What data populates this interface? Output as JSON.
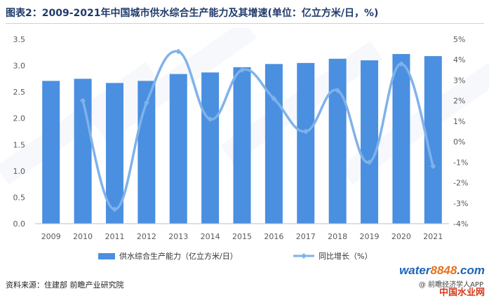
{
  "title": "图表2：2009-2021年中国城市供水综合生产能力及其增速(单位：亿立方米/日，%)",
  "source": "资料来源：住建部 前瞻产业研究院",
  "watermark": {
    "site_a": "water",
    "site_b": "8848",
    "site_c": ".com",
    "line2": "@ 前瞻经济学人APP",
    "line3": "中国水业网"
  },
  "colors": {
    "bar": "#4a8fe0",
    "line": "#7fb2ea",
    "title": "#1f3b6b"
  },
  "chart_data": {
    "type": "bar",
    "title": "图表2：2009-2021年中国城市供水综合生产能力及其增速(单位：亿立方米/日，%)",
    "categories": [
      "2009",
      "2010",
      "2011",
      "2012",
      "2013",
      "2014",
      "2015",
      "2016",
      "2017",
      "2018",
      "2019",
      "2020",
      "2021"
    ],
    "series": [
      {
        "name": "供水综合生产能力（亿立方米/日）",
        "type": "bar",
        "axis": "left",
        "values": [
          2.71,
          2.75,
          2.67,
          2.71,
          2.84,
          2.87,
          2.97,
          3.03,
          3.05,
          3.13,
          3.1,
          3.22,
          3.18
        ]
      },
      {
        "name": "同比增长（%）",
        "type": "line",
        "axis": "right",
        "smooth": true,
        "values": [
          null,
          2.0,
          -3.3,
          1.9,
          4.4,
          1.1,
          3.5,
          2.1,
          0.5,
          2.5,
          -1.0,
          3.8,
          -1.2
        ]
      }
    ],
    "y_left": {
      "min": 0,
      "max": 3.5,
      "ticks": [
        "0.0",
        "0.5",
        "1.0",
        "1.5",
        "2.0",
        "2.5",
        "3.0",
        "3.5"
      ]
    },
    "y_right": {
      "min": -4,
      "max": 5,
      "ticks": [
        "-4%",
        "-3%",
        "-2%",
        "-1%",
        "0%",
        "1%",
        "2%",
        "3%",
        "4%",
        "5%"
      ]
    },
    "grid": false,
    "legend_position": "bottom"
  }
}
